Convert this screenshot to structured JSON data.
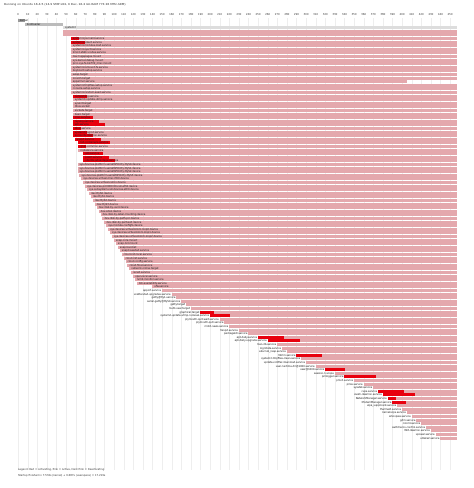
{
  "header": {
    "title_line": "Running on Ubuntu 16.4.5 (14.9 SMP x64, 9 Dec, 16.4 Gb RAM Y74 26 MHz ARM)"
  },
  "axis": {
    "ticks": [
      "0",
      "10",
      "20",
      "30",
      "40",
      "50",
      "60",
      "70",
      "80",
      "90",
      "100",
      "110",
      "120",
      "130",
      "140",
      "150",
      "160",
      "170",
      "180",
      "190",
      "200",
      "210",
      "220",
      "230",
      "240",
      "250",
      "260",
      "270",
      "280",
      "290",
      "300",
      "310",
      "320",
      "330",
      "340",
      "350",
      "360",
      "370",
      "380",
      "390",
      "400",
      "410",
      "420",
      "430",
      "440",
      "450"
    ]
  },
  "rows": [
    {
      "label": "kernel",
      "start": 0,
      "len": 7,
      "wait": 0
    },
    {
      "label": "bootloader",
      "start": 7,
      "len": 40,
      "wait": 0
    },
    {
      "label": "systemd",
      "start": 47,
      "len": 410,
      "wait": 0
    },
    {
      "label": "",
      "start": 47,
      "len": 410,
      "wait": 0
    },
    {
      "label": "",
      "start": 47,
      "len": 410,
      "wait": 0
    },
    {
      "label": "systemd-journald.service",
      "start": 55,
      "len": 402,
      "wait": 1
    },
    {
      "label": "systemd-udevd.service",
      "start": 55,
      "len": 402,
      "wait": 1
    },
    {
      "label": "systemd-modules-load.service",
      "start": 55,
      "len": 402,
      "wait": 0
    },
    {
      "label": "systemd-sysctl.service",
      "start": 55,
      "len": 402,
      "wait": 0
    },
    {
      "label": "kmod-static-nodes.service",
      "start": 55,
      "len": 402,
      "wait": 0
    },
    {
      "label": "dev-hugepages.mount",
      "start": 55,
      "len": 402,
      "wait": 0
    },
    {
      "label": "sys-kernel-debug.mount",
      "start": 55,
      "len": 402,
      "wait": 0
    },
    {
      "label": "proc-sys-fs-binfmt_misc.mount",
      "start": 55,
      "len": 402,
      "wait": 0
    },
    {
      "label": "systemd-remount-fs.service",
      "start": 55,
      "len": 402,
      "wait": 0
    },
    {
      "label": "keyboard-setup.service",
      "start": 55,
      "len": 402,
      "wait": 0
    },
    {
      "label": "swap.target",
      "start": 55,
      "len": 402,
      "wait": 0
    },
    {
      "label": "local-fs.target",
      "start": 55,
      "len": 402,
      "wait": 0
    },
    {
      "label": "apparmor.service",
      "start": 55,
      "len": 350,
      "wait": 0
    },
    {
      "label": "systemd-tmpfiles-setup.service",
      "start": 55,
      "len": 402,
      "wait": 0
    },
    {
      "label": "console-setup.service",
      "start": 55,
      "len": 402,
      "wait": 0
    },
    {
      "label": "systemd-random-seed.service",
      "start": 55,
      "len": 402,
      "wait": 0
    },
    {
      "label": "networking.service",
      "start": 57,
      "len": 400,
      "wait": 1
    },
    {
      "label": "systemd-update-utmp.service",
      "start": 57,
      "len": 400,
      "wait": 0
    },
    {
      "label": "sysinit.target",
      "start": 57,
      "len": 400,
      "wait": 0
    },
    {
      "label": "dbus.socket",
      "start": 57,
      "len": 400,
      "wait": 0
    },
    {
      "label": "sockets.target",
      "start": 57,
      "len": 400,
      "wait": 0
    },
    {
      "label": "basic.target",
      "start": 57,
      "len": 400,
      "wait": 0
    },
    {
      "label": "cron.service",
      "start": 57,
      "len": 400,
      "wait": 1
    },
    {
      "label": "rsyslog.service",
      "start": 57,
      "len": 400,
      "wait": 1
    },
    {
      "label": "ssh.service",
      "start": 57,
      "len": 400,
      "wait": 1
    },
    {
      "label": "dbus.service",
      "start": 57,
      "len": 400,
      "wait": 1
    },
    {
      "label": "systemd-logind.service",
      "start": 57,
      "len": 400,
      "wait": 1
    },
    {
      "label": "accounts-daemon.service",
      "start": 57,
      "len": 400,
      "wait": 1
    },
    {
      "label": "snapd.service",
      "start": 59,
      "len": 398,
      "wait": 1
    },
    {
      "label": "lxd-containers.service",
      "start": 63,
      "len": 394,
      "wait": 1
    },
    {
      "label": "grub-common.service",
      "start": 63,
      "len": 394,
      "wait": 1
    },
    {
      "label": "irqbalance.service",
      "start": 63,
      "len": 394,
      "wait": 0
    },
    {
      "label": "atd.service",
      "start": 68,
      "len": 389,
      "wait": 1
    },
    {
      "label": "polkit.service",
      "start": 68,
      "len": 389,
      "wait": 1
    },
    {
      "label": "ubuntu-advantage.service",
      "start": 68,
      "len": 389,
      "wait": 1
    },
    {
      "label": "sys-devices-platform-serial8250-tty-ttyS0.device",
      "start": 62,
      "len": 395,
      "wait": 0
    },
    {
      "label": "sys-devices-platform-serial8250-tty-ttyS1.device",
      "start": 62,
      "len": 395,
      "wait": 0
    },
    {
      "label": "sys-devices-platform-serial8250-tty-ttyS2.device",
      "start": 62,
      "len": 395,
      "wait": 0
    },
    {
      "label": "sys-devices-platform-serial8250-tty-ttyS3.device",
      "start": 64,
      "len": 393,
      "wait": 0
    },
    {
      "label": "sys-devices-virtual-misc-rfkill.device",
      "start": 66,
      "len": 391,
      "wait": 0
    },
    {
      "label": "sys-devices-virtual-net-lo.device",
      "start": 68,
      "len": 389,
      "wait": 0
    },
    {
      "label": "sys-devices-pci0000:00-net-eth0.device",
      "start": 70,
      "len": 387,
      "wait": 0
    },
    {
      "label": "sys-subsystem-net-devices-eth0.device",
      "start": 72,
      "len": 385,
      "wait": 0
    },
    {
      "label": "dev-ttyS0.device",
      "start": 74,
      "len": 383,
      "wait": 0
    },
    {
      "label": "dev-ttyS1.device",
      "start": 76,
      "len": 381,
      "wait": 0
    },
    {
      "label": "dev-ttyS2.device",
      "start": 78,
      "len": 379,
      "wait": 0
    },
    {
      "label": "dev-ttyS3.device",
      "start": 80,
      "len": 377,
      "wait": 0
    },
    {
      "label": "dev-disk-by-uuid.device",
      "start": 82,
      "len": 375,
      "wait": 0
    },
    {
      "label": "dev-sda1.device",
      "start": 84,
      "len": 373,
      "wait": 0
    },
    {
      "label": "dev-disk-by-label-cloudimg.device",
      "start": 86,
      "len": 371,
      "wait": 0
    },
    {
      "label": "dev-disk-by-path-pci.device",
      "start": 88,
      "len": 369,
      "wait": 0
    },
    {
      "label": "dev-disk-by-partuuid.device",
      "start": 90,
      "len": 367,
      "wait": 0
    },
    {
      "label": "sys-module-configfs.device",
      "start": 92,
      "len": 365,
      "wait": 0
    },
    {
      "label": "sys-devices-virtual-block-loop0.device",
      "start": 94,
      "len": 363,
      "wait": 0
    },
    {
      "label": "sys-devices-virtual-block-loop1.device",
      "start": 96,
      "len": 361,
      "wait": 0
    },
    {
      "label": "sys-devices-virtual-block-loop2.device",
      "start": 98,
      "len": 359,
      "wait": 0
    },
    {
      "label": "snap-core.mount",
      "start": 100,
      "len": 357,
      "wait": 0
    },
    {
      "label": "snap-lxd.mount",
      "start": 102,
      "len": 355,
      "wait": 0
    },
    {
      "label": "snapd.socket",
      "start": 104,
      "len": 353,
      "wait": 0
    },
    {
      "label": "snapd.seeded.service",
      "start": 106,
      "len": 351,
      "wait": 0
    },
    {
      "label": "cloud-init-local.service",
      "start": 108,
      "len": 349,
      "wait": 0
    },
    {
      "label": "cloud-init.service",
      "start": 110,
      "len": 347,
      "wait": 0
    },
    {
      "label": "cloud-config.service",
      "start": 112,
      "len": 345,
      "wait": 0
    },
    {
      "label": "cloud-final.service",
      "start": 114,
      "len": 343,
      "wait": 0
    },
    {
      "label": "network-online.target",
      "start": 116,
      "len": 341,
      "wait": 0
    },
    {
      "label": "iscsid.service",
      "start": 118,
      "len": 339,
      "wait": 0
    },
    {
      "label": "open-iscsi.service",
      "start": 120,
      "len": 337,
      "wait": 0
    },
    {
      "label": "lvm2-monitor.service",
      "start": 122,
      "len": 335,
      "wait": 0
    },
    {
      "label": "blk-availability.service",
      "start": 124,
      "len": 333,
      "wait": 0
    },
    {
      "label": "ufw.service",
      "start": 140,
      "len": 317,
      "wait": 0
    },
    {
      "label": "apport.service",
      "start": 150,
      "len": 307,
      "wait": 0
    },
    {
      "label": "unattended-upgrades.service",
      "start": 160,
      "len": 297,
      "wait": 0
    },
    {
      "label": "getty@tty1.service",
      "start": 165,
      "len": 292,
      "wait": 0
    },
    {
      "label": "serial-getty@ttyS0.service",
      "start": 170,
      "len": 287,
      "wait": 0
    },
    {
      "label": "getty.target",
      "start": 175,
      "len": 282,
      "wait": 0
    },
    {
      "label": "multi-user.target",
      "start": 180,
      "len": 277,
      "wait": 0
    },
    {
      "label": "graphical.target",
      "start": 190,
      "len": 267,
      "wait": 1
    },
    {
      "label": "systemd-update-utmp-runlevel.service",
      "start": 200,
      "len": 257,
      "wait": 1
    },
    {
      "label": "plymouth-quit-wait.service",
      "start": 210,
      "len": 247,
      "wait": 0
    },
    {
      "label": "plymouth-quit.service",
      "start": 215,
      "len": 242,
      "wait": 0
    },
    {
      "label": "motd-news.service",
      "start": 220,
      "len": 237,
      "wait": 0
    },
    {
      "label": "fwupd.service",
      "start": 230,
      "len": 227,
      "wait": 0
    },
    {
      "label": "packagekit.service",
      "start": 240,
      "len": 217,
      "wait": 0
    },
    {
      "label": "apt-daily.service",
      "start": 250,
      "len": 207,
      "wait": 1
    },
    {
      "label": "apt-daily-upgrade.service",
      "start": 260,
      "len": 197,
      "wait": 1
    },
    {
      "label": "man-db.service",
      "start": 270,
      "len": 187,
      "wait": 0
    },
    {
      "label": "logrotate.service",
      "start": 275,
      "len": 182,
      "wait": 0
    },
    {
      "label": "e2scrub_reap.service",
      "start": 280,
      "len": 177,
      "wait": 0
    },
    {
      "label": "fstrim.service",
      "start": 290,
      "len": 167,
      "wait": 1
    },
    {
      "label": "systemd-tmpfiles-clean.service",
      "start": 295,
      "len": 162,
      "wait": 0
    },
    {
      "label": "update-notifier-download.service",
      "start": 300,
      "len": 157,
      "wait": 0
    },
    {
      "label": "user-runtime-dir@1000.service",
      "start": 310,
      "len": 147,
      "wait": 0
    },
    {
      "label": "user@1000.service",
      "start": 320,
      "len": 137,
      "wait": 1
    },
    {
      "label": "session-1.scope",
      "start": 330,
      "len": 127,
      "wait": 0
    },
    {
      "label": "pmlogger.service",
      "start": 340,
      "len": 117,
      "wait": 1
    },
    {
      "label": "pmcd.service",
      "start": 350,
      "len": 107,
      "wait": 0
    },
    {
      "label": "pmie.service",
      "start": 360,
      "len": 97,
      "wait": 0
    },
    {
      "label": "sysstat.service",
      "start": 370,
      "len": 87,
      "wait": 0
    },
    {
      "label": "cups.service",
      "start": 375,
      "len": 82,
      "wait": 1
    },
    {
      "label": "avahi-daemon.service",
      "start": 380,
      "len": 77,
      "wait": 1
    },
    {
      "label": "NetworkManager.service",
      "start": 385,
      "len": 72,
      "wait": 1
    },
    {
      "label": "ModemManager.service",
      "start": 390,
      "len": 67,
      "wait": 1
    },
    {
      "label": "wpa_supplicant.service",
      "start": 395,
      "len": 62,
      "wait": 0
    },
    {
      "label": "thermald.service",
      "start": 400,
      "len": 57,
      "wait": 0
    },
    {
      "label": "kerneloops.service",
      "start": 405,
      "len": 52,
      "wait": 0
    },
    {
      "label": "whoopsie.service",
      "start": 410,
      "len": 47,
      "wait": 0
    },
    {
      "label": "gdm.service",
      "start": 415,
      "len": 42,
      "wait": 0
    },
    {
      "label": "colord.service",
      "start": 420,
      "len": 37,
      "wait": 0
    },
    {
      "label": "switcheroo-control.service",
      "start": 425,
      "len": 32,
      "wait": 0
    },
    {
      "label": "rtkit-daemon.service",
      "start": 430,
      "len": 27,
      "wait": 0
    },
    {
      "label": "upower.service",
      "start": 435,
      "len": 22,
      "wait": 0
    },
    {
      "label": "udisks2.service",
      "start": 440,
      "len": 17,
      "wait": 0
    }
  ],
  "legend": {
    "line1": "Legend: Red = Activating, Pink = Active, Dark Pink = Deactivating",
    "line2": "Startup finished in 7.532s (kernel) + 9.687s (userspace) = 17.219s"
  },
  "colors": {
    "active": "#e4a8ad",
    "activating": "#e8000e",
    "kernel": "#999999",
    "bootloader": "#bbbbbb",
    "systemd": "#dddddd"
  }
}
